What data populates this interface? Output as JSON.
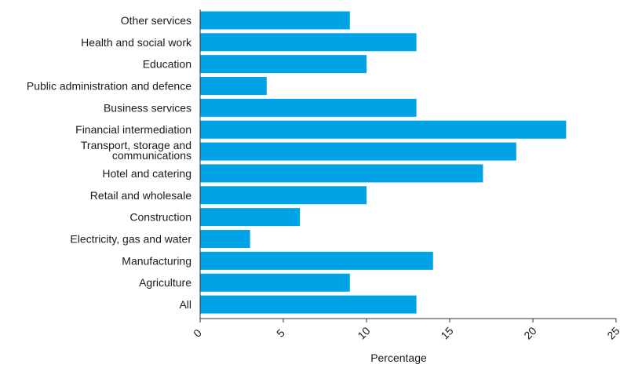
{
  "chart_data": {
    "type": "bar",
    "orientation": "horizontal",
    "categories": [
      "Other services",
      "Health and social work",
      "Education",
      "Public administration and defence",
      "Business services",
      "Financial intermediation",
      "Transport, storage and communications",
      "Hotel and catering",
      "Retail and wholesale",
      "Construction",
      "Electricity, gas and water",
      "Manufacturing",
      "Agriculture",
      "All"
    ],
    "values": [
      9,
      13,
      10,
      4,
      13,
      22,
      19,
      17,
      10,
      6,
      3,
      14,
      9,
      13
    ],
    "xlabel": "Percentage",
    "ylabel": "",
    "xlim": [
      0,
      25
    ],
    "xticks": [
      "0",
      "5",
      "10",
      "15",
      "20",
      "25"
    ],
    "bar_color": "#00a3e6",
    "grid": false,
    "legend": "none"
  }
}
